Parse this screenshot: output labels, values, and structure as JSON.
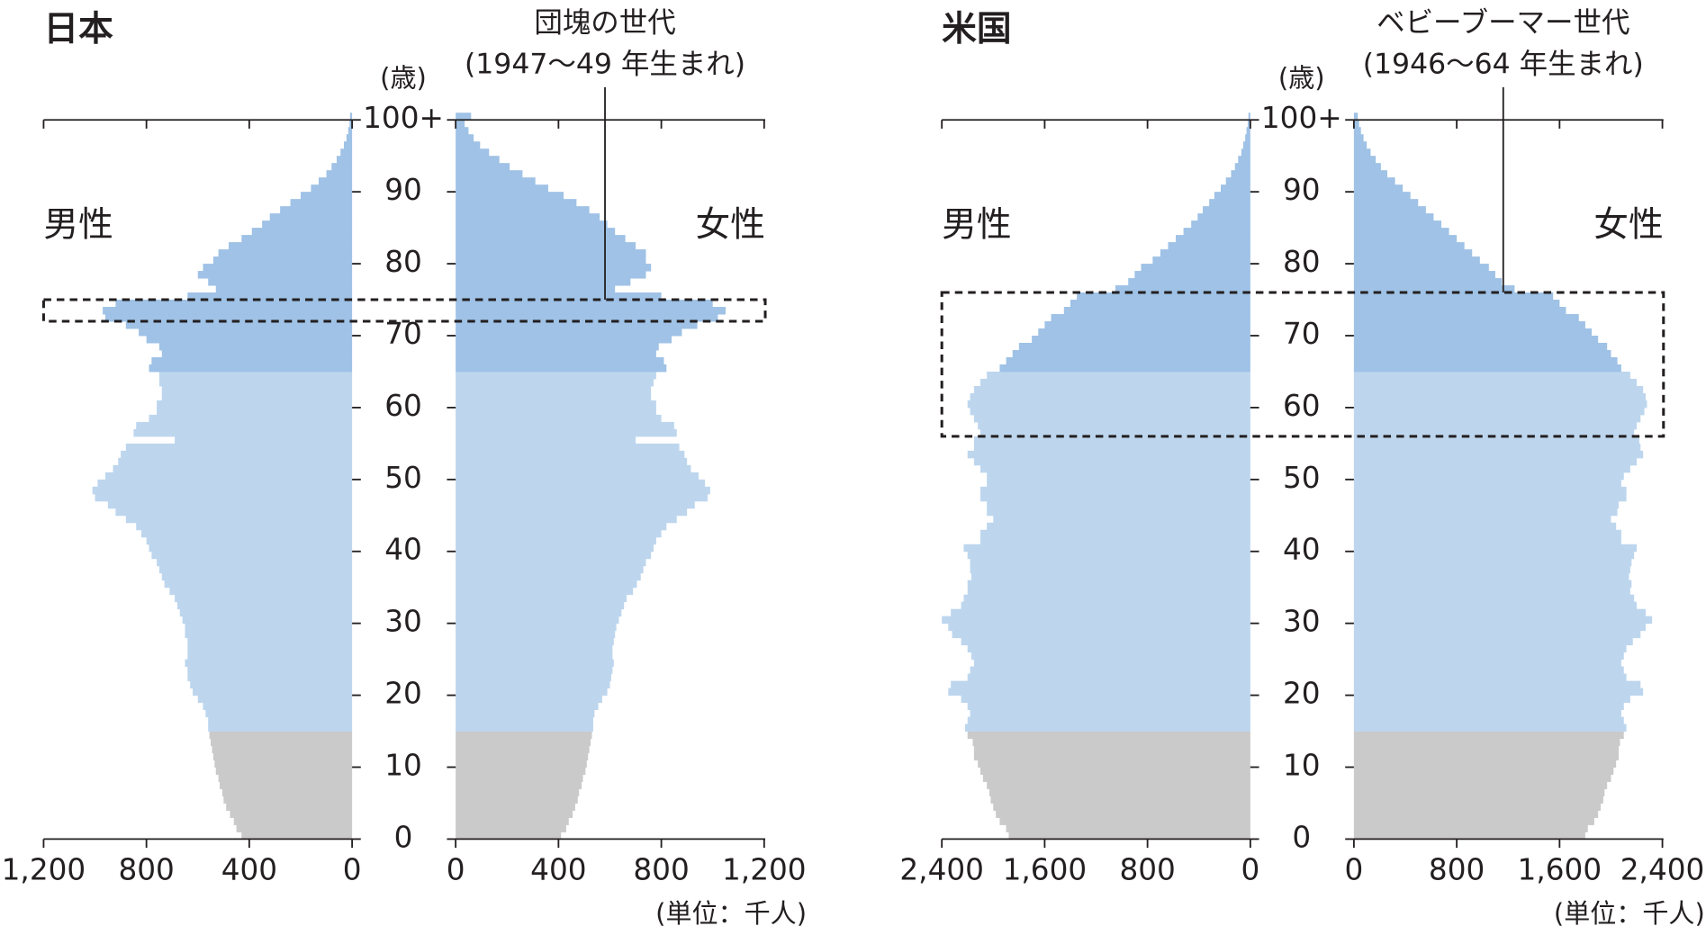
{
  "chart_data": [
    {
      "type": "population_pyramid",
      "title": "日本",
      "annotation": [
        "団塊の世代",
        "(1947～49 年生まれ)"
      ],
      "y_label": "(歳)",
      "unit_label": "(単位：千人)",
      "y": [
        0,
        1,
        2,
        3,
        4,
        5,
        6,
        7,
        8,
        9,
        10,
        11,
        12,
        13,
        14,
        15,
        16,
        17,
        18,
        19,
        20,
        21,
        22,
        23,
        24,
        25,
        26,
        27,
        28,
        29,
        30,
        31,
        32,
        33,
        34,
        35,
        36,
        37,
        38,
        39,
        40,
        41,
        42,
        43,
        44,
        45,
        46,
        47,
        48,
        49,
        50,
        51,
        52,
        53,
        54,
        55,
        56,
        57,
        58,
        59,
        60,
        61,
        62,
        63,
        64,
        65,
        66,
        67,
        68,
        69,
        70,
        71,
        72,
        73,
        74,
        75,
        76,
        77,
        78,
        79,
        80,
        81,
        82,
        83,
        84,
        85,
        86,
        87,
        88,
        89,
        90,
        91,
        92,
        93,
        94,
        95,
        96,
        97,
        98,
        99,
        100
      ],
      "series": [
        {
          "name": "男性",
          "side": "left",
          "values": [
            430,
            450,
            460,
            475,
            490,
            500,
            505,
            515,
            520,
            530,
            535,
            540,
            545,
            550,
            555,
            560,
            560,
            570,
            580,
            600,
            620,
            630,
            640,
            640,
            650,
            640,
            640,
            640,
            650,
            650,
            660,
            670,
            680,
            690,
            710,
            730,
            740,
            750,
            760,
            780,
            790,
            800,
            820,
            840,
            880,
            920,
            950,
            1000,
            1010,
            990,
            960,
            930,
            910,
            900,
            880,
            690,
            850,
            840,
            790,
            760,
            760,
            740,
            740,
            750,
            750,
            790,
            780,
            740,
            750,
            800,
            830,
            880,
            960,
            970,
            920,
            640,
            530,
            560,
            600,
            580,
            540,
            520,
            480,
            430,
            390,
            350,
            320,
            280,
            240,
            200,
            160,
            130,
            100,
            80,
            60,
            45,
            32,
            22,
            15,
            10,
            8
          ]
        },
        {
          "name": "女性",
          "side": "right",
          "values": [
            410,
            430,
            440,
            455,
            465,
            475,
            480,
            490,
            495,
            505,
            510,
            515,
            520,
            525,
            530,
            535,
            535,
            540,
            555,
            570,
            590,
            600,
            605,
            610,
            615,
            610,
            610,
            615,
            620,
            625,
            635,
            645,
            655,
            665,
            690,
            705,
            720,
            730,
            740,
            760,
            770,
            780,
            800,
            820,
            860,
            900,
            930,
            980,
            990,
            970,
            945,
            915,
            900,
            890,
            870,
            700,
            860,
            850,
            800,
            780,
            780,
            760,
            760,
            770,
            780,
            820,
            810,
            780,
            790,
            840,
            880,
            940,
            1020,
            1050,
            1000,
            800,
            620,
            680,
            740,
            760,
            740,
            740,
            700,
            660,
            620,
            590,
            560,
            520,
            470,
            420,
            360,
            310,
            260,
            210,
            170,
            130,
            95,
            70,
            50,
            35,
            60
          ]
        }
      ],
      "color_bands": [
        {
          "from": 0,
          "color": "#cacaca"
        },
        {
          "from": 15,
          "color": "#bdd6ee"
        },
        {
          "from": 65,
          "color": "#9fc2e6"
        }
      ],
      "highlight": [
        72,
        74
      ],
      "xlim": [
        0,
        1200
      ],
      "xticks": [
        0,
        400,
        800,
        {
          "value": 1200,
          "label": "1,200"
        }
      ],
      "ylim": [
        0,
        100
      ],
      "yticks": [
        0,
        10,
        20,
        30,
        40,
        50,
        60,
        70,
        80,
        90,
        {
          "value": 100,
          "label": "100+"
        }
      ]
    },
    {
      "type": "population_pyramid",
      "title": "米国",
      "annotation": [
        "ベビーブーマー世代",
        "(1946～64 年生まれ)"
      ],
      "y_label": "(歳)",
      "unit_label": "(単位：千人)",
      "y": [
        0,
        1,
        2,
        3,
        4,
        5,
        6,
        7,
        8,
        9,
        10,
        11,
        12,
        13,
        14,
        15,
        16,
        17,
        18,
        19,
        20,
        21,
        22,
        23,
        24,
        25,
        26,
        27,
        28,
        29,
        30,
        31,
        32,
        33,
        34,
        35,
        36,
        37,
        38,
        39,
        40,
        41,
        42,
        43,
        44,
        45,
        46,
        47,
        48,
        49,
        50,
        51,
        52,
        53,
        54,
        55,
        56,
        57,
        58,
        59,
        60,
        61,
        62,
        63,
        64,
        65,
        66,
        67,
        68,
        69,
        70,
        71,
        72,
        73,
        74,
        75,
        76,
        77,
        78,
        79,
        80,
        81,
        82,
        83,
        84,
        85,
        86,
        87,
        88,
        89,
        90,
        91,
        92,
        93,
        94,
        95,
        96,
        97,
        98,
        99,
        100
      ],
      "series": [
        {
          "name": "男性",
          "side": "left",
          "values": [
            1880,
            1900,
            1950,
            1980,
            2000,
            2020,
            2030,
            2050,
            2080,
            2100,
            2120,
            2150,
            2150,
            2160,
            2200,
            2220,
            2200,
            2180,
            2200,
            2250,
            2350,
            2330,
            2200,
            2180,
            2150,
            2170,
            2200,
            2250,
            2320,
            2350,
            2400,
            2330,
            2250,
            2230,
            2200,
            2200,
            2170,
            2180,
            2180,
            2200,
            2230,
            2100,
            2100,
            2050,
            2000,
            2050,
            2050,
            2100,
            2100,
            2050,
            2050,
            2100,
            2150,
            2200,
            2150,
            2150,
            2100,
            2120,
            2150,
            2180,
            2200,
            2180,
            2150,
            2100,
            2050,
            1950,
            1900,
            1850,
            1800,
            1700,
            1650,
            1600,
            1550,
            1450,
            1400,
            1350,
            1050,
            950,
            900,
            850,
            760,
            700,
            640,
            580,
            520,
            460,
            410,
            370,
            320,
            280,
            230,
            190,
            150,
            120,
            95,
            70,
            55,
            40,
            30,
            20,
            15
          ]
        },
        {
          "name": "女性",
          "side": "right",
          "values": [
            1800,
            1820,
            1870,
            1900,
            1920,
            1940,
            1950,
            1970,
            2000,
            2020,
            2040,
            2060,
            2060,
            2070,
            2100,
            2120,
            2100,
            2080,
            2100,
            2150,
            2250,
            2230,
            2120,
            2100,
            2080,
            2100,
            2120,
            2170,
            2230,
            2270,
            2320,
            2270,
            2200,
            2180,
            2150,
            2160,
            2140,
            2150,
            2160,
            2180,
            2200,
            2080,
            2080,
            2040,
            2000,
            2050,
            2060,
            2120,
            2120,
            2080,
            2100,
            2150,
            2200,
            2250,
            2230,
            2220,
            2180,
            2200,
            2230,
            2260,
            2280,
            2270,
            2250,
            2200,
            2150,
            2080,
            2050,
            2000,
            1970,
            1900,
            1850,
            1800,
            1750,
            1650,
            1600,
            1550,
            1250,
            1150,
            1100,
            1050,
            980,
            920,
            860,
            800,
            740,
            680,
            620,
            560,
            500,
            440,
            380,
            320,
            260,
            210,
            170,
            130,
            100,
            75,
            55,
            40,
            30
          ]
        }
      ],
      "color_bands": [
        {
          "from": 0,
          "color": "#cacaca"
        },
        {
          "from": 15,
          "color": "#bdd6ee"
        },
        {
          "from": 65,
          "color": "#9fc2e6"
        }
      ],
      "highlight": [
        56,
        75
      ],
      "xlim": [
        0,
        2400
      ],
      "xticks": [
        0,
        800,
        {
          "value": 1600,
          "label": "1,600"
        },
        {
          "value": 2400,
          "label": "2,400"
        }
      ],
      "ylim": [
        0,
        100
      ],
      "yticks": [
        0,
        10,
        20,
        30,
        40,
        50,
        60,
        70,
        80,
        90,
        {
          "value": 100,
          "label": "100+"
        }
      ]
    }
  ]
}
